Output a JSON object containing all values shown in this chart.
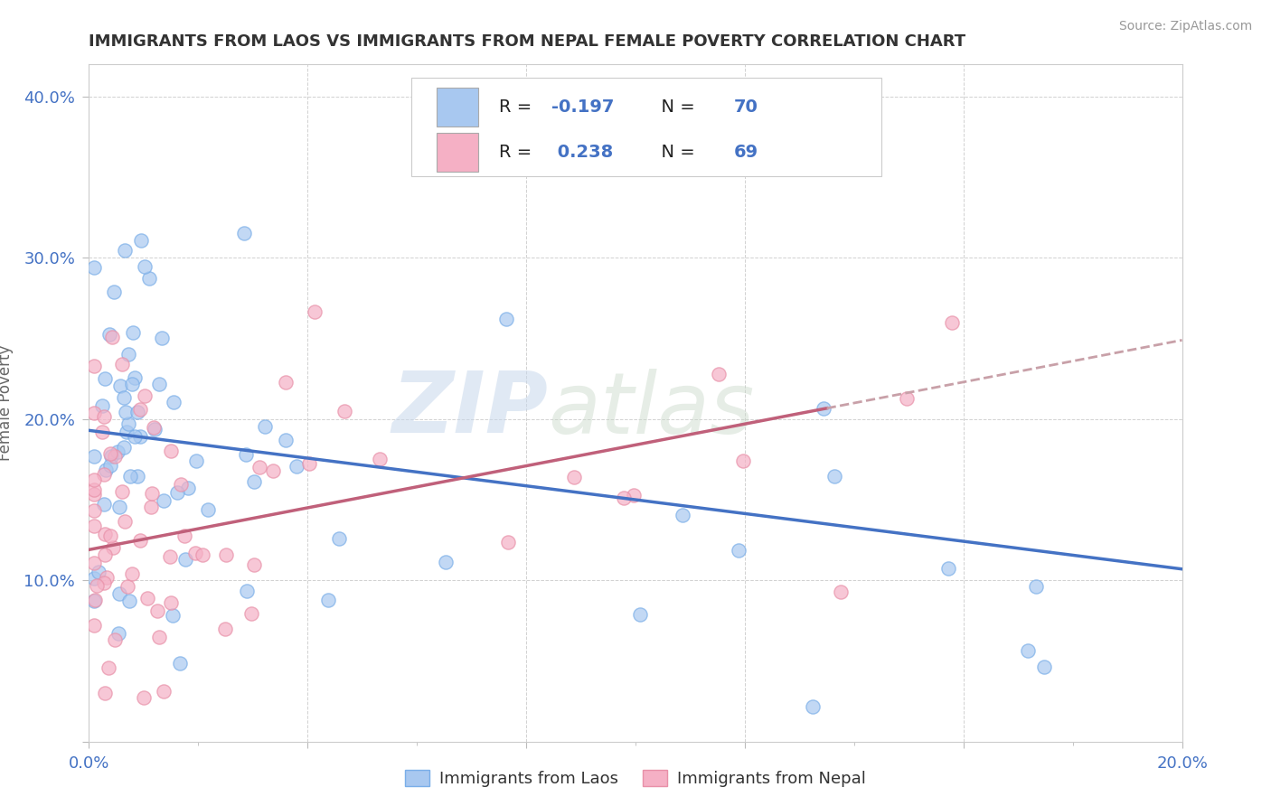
{
  "title": "IMMIGRANTS FROM LAOS VS IMMIGRANTS FROM NEPAL FEMALE POVERTY CORRELATION CHART",
  "source": "Source: ZipAtlas.com",
  "ylabel": "Female Poverty",
  "xlim": [
    0.0,
    0.2
  ],
  "ylim": [
    0.0,
    0.42
  ],
  "xtick_labels": [
    "0.0%",
    "",
    "",
    "",
    "",
    "20.0%"
  ],
  "ytick_labels": [
    "",
    "10.0%",
    "20.0%",
    "30.0%",
    "40.0%"
  ],
  "laos_color": "#A8C8F0",
  "nepal_color": "#F5B0C5",
  "laos_edge_color": "#7aaee8",
  "nepal_edge_color": "#e890a8",
  "laos_line_color": "#4472C4",
  "nepal_line_color": "#C0607A",
  "nepal_dash_color": "#C8A0A8",
  "legend_blue_color": "#4472C4",
  "legend_bottom_laos": "Immigrants from Laos",
  "legend_bottom_nepal": "Immigrants from Nepal",
  "watermark_zip": "ZIP",
  "watermark_atlas": "atlas",
  "laos_intercept": 0.193,
  "laos_slope": -0.43,
  "nepal_intercept": 0.119,
  "nepal_slope": 0.65,
  "background_color": "#FFFFFF",
  "grid_color": "#CCCCCC",
  "title_color": "#333333",
  "axis_label_color": "#666666",
  "tick_color": "#4472C4"
}
